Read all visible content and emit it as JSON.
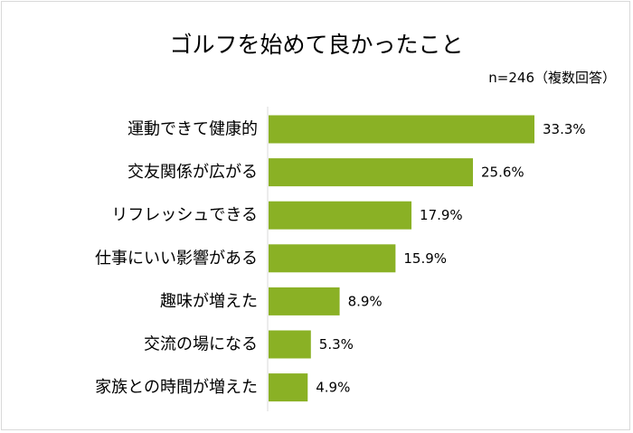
{
  "chart_data": {
    "type": "bar",
    "orientation": "horizontal",
    "title": "ゴルフを始めて良かったこと",
    "note": "n=246（複数回答）",
    "categories": [
      "運動できて健康的",
      "交友関係が広がる",
      "リフレッシュできる",
      "仕事にいい影響がある",
      "趣味が増えた",
      "交流の場になる",
      "家族との時間が増えた"
    ],
    "values": [
      33.3,
      25.6,
      17.9,
      15.9,
      8.9,
      5.3,
      4.9
    ],
    "value_labels": [
      "33.3%",
      "25.6%",
      "17.9%",
      "15.9%",
      "8.9%",
      "5.3%",
      "4.9%"
    ],
    "xlim": [
      0,
      35
    ],
    "bar_color": "#8ab125",
    "axis_color": "#d9d9d9",
    "grid": false,
    "legend": false
  }
}
